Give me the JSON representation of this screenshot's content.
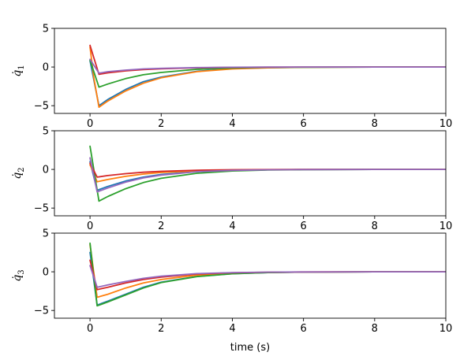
{
  "chart_data": [
    {
      "type": "line",
      "ylabel": "q̇1",
      "ylabel_symbol": "q",
      "ylabel_subscript": "1",
      "xlim": [
        -1,
        10
      ],
      "ylim": [
        -6,
        5
      ],
      "xticks": [
        0,
        2,
        4,
        6,
        8,
        10
      ],
      "yticks": [
        -5,
        0,
        5
      ],
      "grid": false,
      "series": [
        {
          "color": "#1f77b4",
          "x": [
            0,
            0.1,
            0.25,
            0.5,
            1,
            1.5,
            2,
            3,
            4,
            5,
            6,
            8,
            10
          ],
          "values": [
            0.8,
            -1.5,
            -5.0,
            -4.2,
            -2.9,
            -1.9,
            -1.3,
            -0.55,
            -0.2,
            -0.08,
            -0.03,
            0,
            0
          ]
        },
        {
          "color": "#ff7f0e",
          "x": [
            0,
            0.1,
            0.25,
            0.5,
            1,
            1.5,
            2,
            3,
            4,
            5,
            6,
            8,
            10
          ],
          "values": [
            2.6,
            -1.2,
            -5.2,
            -4.4,
            -3.1,
            -2.1,
            -1.4,
            -0.6,
            -0.25,
            -0.1,
            -0.04,
            0,
            0
          ]
        },
        {
          "color": "#2ca02c",
          "x": [
            0,
            0.25,
            0.5,
            1,
            1.5,
            2,
            3,
            4,
            5,
            6,
            8,
            10
          ],
          "values": [
            0.9,
            -2.6,
            -2.2,
            -1.5,
            -1.0,
            -0.7,
            -0.3,
            -0.12,
            -0.05,
            -0.02,
            0,
            0
          ]
        },
        {
          "color": "#d62728",
          "x": [
            0,
            0.25,
            0.5,
            1,
            1.5,
            2,
            3,
            4,
            5,
            6,
            8,
            10
          ],
          "values": [
            2.8,
            -0.95,
            -0.75,
            -0.5,
            -0.33,
            -0.22,
            -0.1,
            -0.04,
            -0.02,
            0,
            0,
            0
          ]
        },
        {
          "color": "#9467bd",
          "x": [
            0,
            0.25,
            0.5,
            1,
            1.5,
            2,
            3,
            4,
            5,
            6,
            8,
            10
          ],
          "values": [
            1.0,
            -0.8,
            -0.6,
            -0.4,
            -0.25,
            -0.17,
            -0.07,
            -0.03,
            -0.01,
            0,
            0,
            0
          ]
        }
      ]
    },
    {
      "type": "line",
      "ylabel": "q̇2",
      "ylabel_symbol": "q",
      "ylabel_subscript": "2",
      "xlim": [
        -1,
        10
      ],
      "ylim": [
        -6,
        5
      ],
      "xticks": [
        0,
        2,
        4,
        6,
        8,
        10
      ],
      "yticks": [
        -5,
        0,
        5
      ],
      "grid": false,
      "series": [
        {
          "color": "#1f77b4",
          "x": [
            0,
            0.2,
            0.5,
            1,
            1.5,
            2,
            3,
            4,
            5,
            6,
            8,
            10
          ],
          "values": [
            1.0,
            -2.7,
            -2.2,
            -1.5,
            -1.0,
            -0.65,
            -0.28,
            -0.11,
            -0.05,
            -0.02,
            0,
            0
          ]
        },
        {
          "color": "#ff7f0e",
          "x": [
            0,
            0.2,
            0.5,
            1,
            1.5,
            2,
            3,
            4,
            5,
            6,
            8,
            10
          ],
          "values": [
            0.6,
            -1.6,
            -1.3,
            -0.9,
            -0.6,
            -0.4,
            -0.17,
            -0.07,
            -0.03,
            -0.01,
            0,
            0
          ]
        },
        {
          "color": "#2ca02c",
          "x": [
            0,
            0.25,
            0.5,
            1,
            1.5,
            2,
            3,
            4,
            5,
            6,
            8,
            10
          ],
          "values": [
            3.0,
            -4.1,
            -3.5,
            -2.5,
            -1.7,
            -1.15,
            -0.5,
            -0.2,
            -0.08,
            -0.03,
            0,
            0
          ]
        },
        {
          "color": "#d62728",
          "x": [
            0,
            0.2,
            0.5,
            1,
            1.5,
            2,
            3,
            4,
            5,
            6,
            8,
            10
          ],
          "values": [
            0.8,
            -1.0,
            -0.8,
            -0.55,
            -0.37,
            -0.25,
            -0.1,
            -0.04,
            -0.02,
            0,
            0,
            0
          ]
        },
        {
          "color": "#9467bd",
          "x": [
            0,
            0.2,
            0.5,
            1,
            1.5,
            2,
            3,
            4,
            5,
            6,
            8,
            10
          ],
          "values": [
            1.5,
            -2.9,
            -2.4,
            -1.65,
            -1.1,
            -0.73,
            -0.3,
            -0.12,
            -0.05,
            -0.02,
            0,
            0
          ]
        }
      ]
    },
    {
      "type": "line",
      "xlabel": "time (s)",
      "ylabel": "q̇3",
      "ylabel_symbol": "q",
      "ylabel_subscript": "3",
      "xlim": [
        -1,
        10
      ],
      "ylim": [
        -6,
        5
      ],
      "xticks": [
        0,
        2,
        4,
        6,
        8,
        10
      ],
      "yticks": [
        -5,
        0,
        5
      ],
      "grid": false,
      "series": [
        {
          "color": "#1f77b4",
          "x": [
            0,
            0.2,
            0.5,
            1,
            1.5,
            2,
            3,
            4,
            5,
            6,
            8,
            10
          ],
          "values": [
            2.5,
            -4.3,
            -3.8,
            -2.9,
            -2.0,
            -1.35,
            -0.6,
            -0.25,
            -0.1,
            -0.04,
            0,
            0
          ]
        },
        {
          "color": "#ff7f0e",
          "x": [
            0,
            0.2,
            0.5,
            1,
            1.5,
            2,
            3,
            4,
            5,
            6,
            8,
            10
          ],
          "values": [
            3.5,
            -3.3,
            -2.9,
            -2.1,
            -1.45,
            -1.0,
            -0.43,
            -0.18,
            -0.07,
            -0.03,
            0,
            0
          ]
        },
        {
          "color": "#2ca02c",
          "x": [
            0,
            0.2,
            0.5,
            1,
            1.5,
            2,
            3,
            4,
            5,
            6,
            8,
            10
          ],
          "values": [
            3.7,
            -4.4,
            -3.9,
            -3.0,
            -2.1,
            -1.4,
            -0.62,
            -0.26,
            -0.1,
            -0.04,
            0,
            0
          ]
        },
        {
          "color": "#d62728",
          "x": [
            0,
            0.2,
            0.5,
            1,
            1.5,
            2,
            3,
            4,
            5,
            6,
            8,
            10
          ],
          "values": [
            1.5,
            -2.3,
            -2.0,
            -1.45,
            -1.0,
            -0.68,
            -0.29,
            -0.12,
            -0.05,
            -0.02,
            0,
            0
          ]
        },
        {
          "color": "#9467bd",
          "x": [
            0,
            0.2,
            0.5,
            1,
            1.5,
            2,
            3,
            4,
            5,
            6,
            8,
            10
          ],
          "values": [
            0.8,
            -2.0,
            -1.7,
            -1.25,
            -0.85,
            -0.57,
            -0.24,
            -0.1,
            -0.04,
            -0.02,
            0,
            0
          ]
        }
      ]
    }
  ]
}
